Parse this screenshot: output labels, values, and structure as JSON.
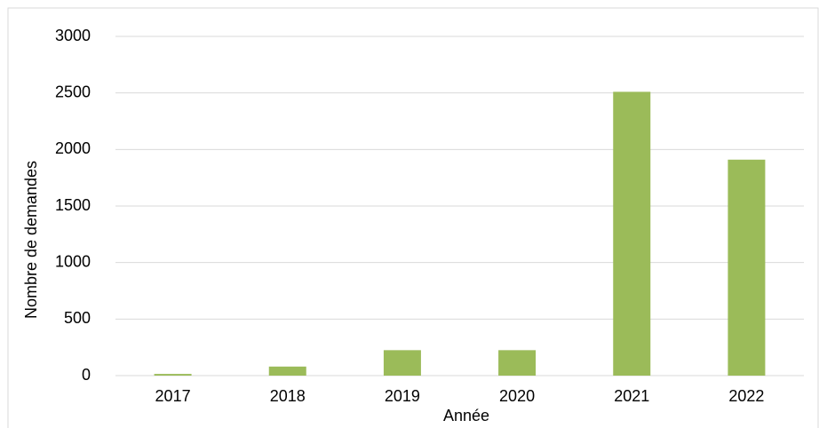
{
  "chart_data": {
    "type": "bar",
    "x_label": "Année",
    "y_label": "Nombre de demandes",
    "categories": [
      "2017",
      "2018",
      "2019",
      "2020",
      "2021",
      "2022"
    ],
    "values": [
      15,
      80,
      225,
      225,
      2510,
      1910
    ],
    "color": "#9bbb59",
    "ylim": [
      0,
      3000
    ],
    "yticks": [
      0,
      500,
      1000,
      1500,
      2000,
      2500,
      3000
    ],
    "grid": true
  }
}
